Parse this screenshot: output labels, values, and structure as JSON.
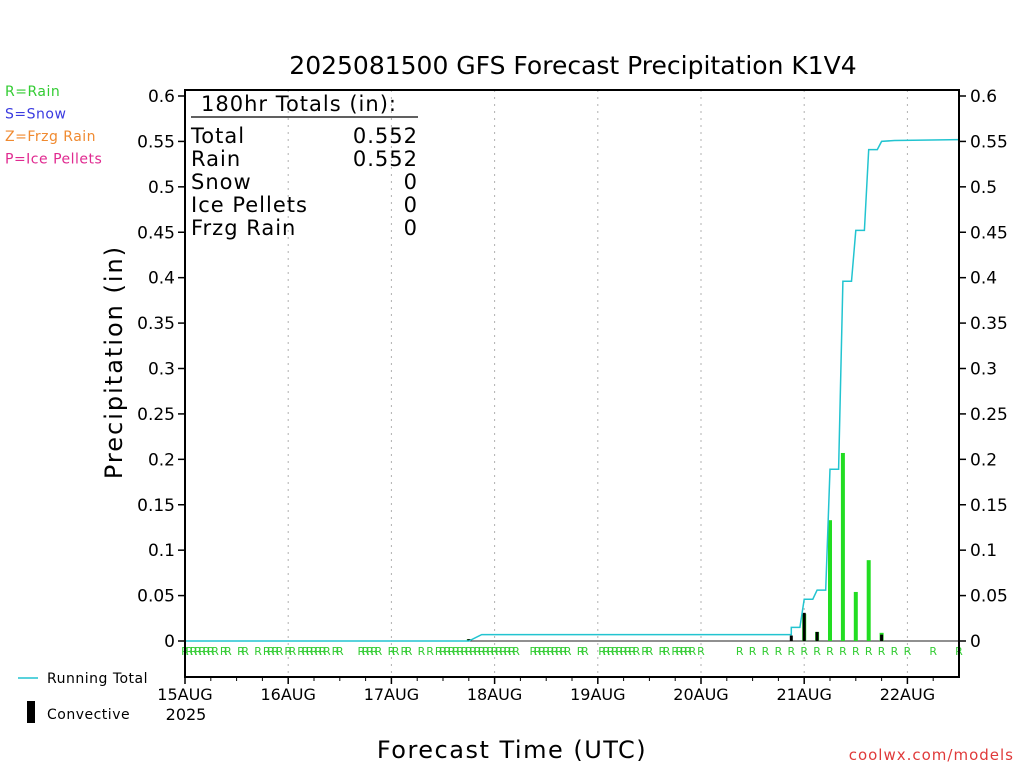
{
  "chart_data": {
    "type": "bar",
    "title": "2025081500 GFS Forecast Precipitation K1V4",
    "xlabel": "Forecast Time (UTC)",
    "ylabel": "Precipitation (in)",
    "x_unit": "forecast hour",
    "xlim": [
      0,
      180
    ],
    "ylim": [
      0,
      0.6
    ],
    "y_ticks": [
      "0",
      "0.05",
      "0.1",
      "0.15",
      "0.2",
      "0.25",
      "0.3",
      "0.35",
      "0.4",
      "0.45",
      "0.5",
      "0.55",
      "0.6"
    ],
    "x_ticks": [
      {
        "hour": 0,
        "label": "15AUG",
        "sub": "2025"
      },
      {
        "hour": 24,
        "label": "16AUG"
      },
      {
        "hour": 48,
        "label": "17AUG"
      },
      {
        "hour": 72,
        "label": "18AUG"
      },
      {
        "hour": 96,
        "label": "19AUG"
      },
      {
        "hour": 120,
        "label": "20AUG"
      },
      {
        "hour": 144,
        "label": "21AUG"
      },
      {
        "hour": 168,
        "label": "22AUG"
      }
    ],
    "grid": "vertical-dotted",
    "ptype_legend": [
      {
        "label": "R=Rain",
        "color": "#33cc33"
      },
      {
        "label": "S=Snow",
        "color": "#3a3ae0"
      },
      {
        "label": "Z=Frzg Rain",
        "color": "#f08a30"
      },
      {
        "label": "P=Ice Pellets",
        "color": "#e02a90"
      }
    ],
    "line_legend": [
      {
        "label": "Running Total",
        "color": "#22c4d0",
        "kind": "line"
      },
      {
        "label": "Convective",
        "color": "#000000",
        "kind": "bar"
      }
    ],
    "totals_box": {
      "heading": "180hr Totals (in):",
      "rows": [
        {
          "label": "Total",
          "value": "0.552"
        },
        {
          "label": "Rain",
          "value": "0.552"
        },
        {
          "label": "Snow",
          "value": "0"
        },
        {
          "label": "Ice Pellets",
          "value": "0"
        },
        {
          "label": "Frzg Rain",
          "value": "0"
        }
      ]
    },
    "series": [
      {
        "name": "Rain",
        "kind": "bars",
        "color": "#22dd22",
        "points": [
          [
            66,
            0.002
          ],
          [
            144,
            0.03
          ],
          [
            147,
            0.01
          ],
          [
            150,
            0.133
          ],
          [
            153,
            0.207
          ],
          [
            156,
            0.054
          ],
          [
            159,
            0.089
          ],
          [
            162,
            0.009
          ]
        ]
      },
      {
        "name": "Convective",
        "kind": "bars",
        "color": "#000000",
        "points": [
          [
            66,
            0.002
          ],
          [
            141,
            0.006
          ],
          [
            144,
            0.031
          ],
          [
            147,
            0.01
          ],
          [
            162,
            0.007
          ]
        ]
      },
      {
        "name": "Running Total",
        "kind": "step-line",
        "color": "#22c4d0",
        "points": [
          [
            0,
            0
          ],
          [
            66,
            0
          ],
          [
            69,
            0.007
          ],
          [
            141,
            0.007
          ],
          [
            141,
            0.015
          ],
          [
            143,
            0.015
          ],
          [
            144,
            0.046
          ],
          [
            146,
            0.046
          ],
          [
            147,
            0.056
          ],
          [
            149,
            0.056
          ],
          [
            150,
            0.189
          ],
          [
            152,
            0.189
          ],
          [
            153,
            0.396
          ],
          [
            155,
            0.396
          ],
          [
            156,
            0.452
          ],
          [
            158,
            0.452
          ],
          [
            159,
            0.541
          ],
          [
            161,
            0.541
          ],
          [
            162,
            0.55
          ],
          [
            165,
            0.551
          ],
          [
            180,
            0.552
          ]
        ]
      }
    ],
    "ptype_marks": {
      "color": "#33cc33",
      "letter": "R",
      "hours": [
        0,
        1,
        2,
        3,
        4,
        5,
        6,
        7,
        9,
        10,
        13,
        14,
        17,
        19,
        20,
        21,
        22,
        24,
        25,
        27,
        28,
        29,
        30,
        31,
        32,
        33,
        35,
        36,
        41,
        42,
        43,
        44,
        45,
        48,
        49,
        51,
        52,
        55,
        57,
        59,
        60,
        61,
        62,
        63,
        64,
        65,
        66,
        67,
        68,
        69,
        70,
        71,
        72,
        73,
        74,
        75,
        76,
        77,
        81,
        82,
        83,
        84,
        85,
        86,
        87,
        88,
        89,
        92,
        93,
        97,
        98,
        99,
        100,
        101,
        102,
        103,
        104,
        105,
        107,
        108,
        111,
        112,
        114,
        115,
        116,
        117,
        118,
        120,
        129,
        132,
        135,
        138,
        141,
        144,
        147,
        150,
        153,
        156,
        159,
        162,
        165,
        168,
        174,
        180
      ]
    },
    "credit": "coolwx.com/models"
  }
}
